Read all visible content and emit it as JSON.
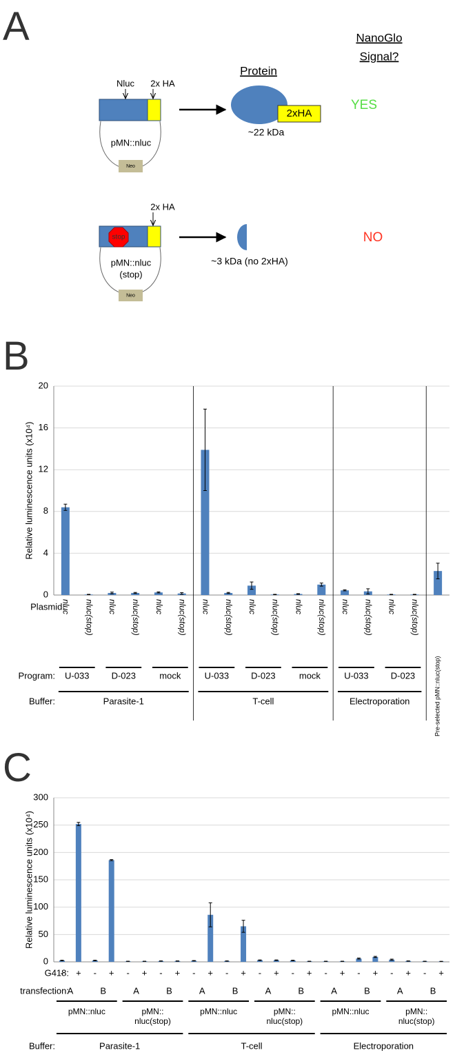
{
  "diagram": {
    "panel": "A",
    "protein_heading": "Protein",
    "signal_heading": [
      "NanoGlo",
      "Signal?"
    ],
    "rows": [
      {
        "insert_label": "Nluc",
        "tag_label": "2x HA",
        "plasmid": [
          "pMN::nluc"
        ],
        "marker": "Neo",
        "protein_tag": "2xHA",
        "protein_size": "~22 kDa",
        "signal": "YES"
      },
      {
        "tag_label": "2x HA",
        "stop": "stop",
        "plasmid": [
          "pMN::nluc",
          "(stop)"
        ],
        "marker": "Neo",
        "protein_size": "~3 kDa (no 2xHA)",
        "signal": "NO"
      }
    ]
  },
  "chart_data": [
    {
      "type": "bar",
      "panel": "B",
      "y_label": "Relative luminescence units (x10⁴)",
      "row_labels": {
        "plasmid": "Plasmid:",
        "program": "Program:",
        "buffer": "Buffer:"
      },
      "categories": [
        "nluc",
        "nluc(stop)",
        "nluc",
        "nluc(stop)",
        "nluc",
        "nluc(stop)",
        "nluc",
        "nluc(stop)",
        "nluc",
        "nluc(stop)",
        "nluc",
        "nluc(stop)",
        "nluc",
        "nluc(stop)",
        "nluc",
        "nluc(stop)",
        "Pre-selected pMN::nluc(stop)"
      ],
      "programs": [
        "U-033",
        "D-023",
        "mock",
        "U-033",
        "D-023",
        "mock",
        "U-033",
        "D-023"
      ],
      "buffers": [
        "Parasite-1",
        "T-cell",
        "Electroporation"
      ],
      "values": [
        8.4,
        0.05,
        0.2,
        0.2,
        0.25,
        0.15,
        13.9,
        0.2,
        0.9,
        0.05,
        0.1,
        1.0,
        0.45,
        0.35,
        0.05,
        0.05,
        2.3
      ],
      "errors": [
        0.3,
        0.02,
        0.08,
        0.05,
        0.05,
        0.08,
        3.9,
        0.05,
        0.35,
        0.02,
        0.03,
        0.15,
        0.05,
        0.25,
        0.02,
        0.02,
        0.75
      ],
      "color": "#4f81bd",
      "ylim": [
        0,
        20
      ],
      "yticks": [
        0,
        4,
        8,
        12,
        16,
        20
      ],
      "grid": true
    },
    {
      "type": "bar",
      "panel": "C",
      "y_label": "Relative luminescence units (x10⁴)",
      "row_labels": {
        "g418": "G418:",
        "transfection": "transfection:",
        "buffer": "Buffer:"
      },
      "categories": [
        "-",
        "+",
        "-",
        "+",
        "-",
        "+",
        "-",
        "+",
        "-",
        "+",
        "-",
        "+",
        "-",
        "+",
        "-",
        "+",
        "-",
        "+",
        "-",
        "+",
        "-",
        "+",
        "-",
        "+"
      ],
      "transfections": [
        "A",
        "B",
        "A",
        "B",
        "A",
        "B",
        "A",
        "B",
        "A",
        "B",
        "A",
        "B"
      ],
      "plasmids": [
        [
          "pMN::nluc"
        ],
        [
          "pMN::",
          "nluc(stop)"
        ],
        [
          "pMN::nluc"
        ],
        [
          "pMN::",
          "nluc(stop)"
        ],
        [
          "pMN::nluc"
        ],
        [
          "pMN::",
          "nluc(stop)"
        ]
      ],
      "buffers": [
        "Parasite-1",
        "T-cell",
        "Electroporation"
      ],
      "values": [
        2.5,
        252,
        2.5,
        186,
        1,
        1,
        1.5,
        1.5,
        2,
        86,
        1.5,
        65,
        3,
        3,
        2.5,
        1,
        1,
        1,
        6,
        9,
        4,
        1.5,
        1,
        0.8
      ],
      "errors": [
        0.5,
        3,
        0.5,
        1,
        0.2,
        0.2,
        0.3,
        0.3,
        0.4,
        22,
        0.3,
        11,
        0.5,
        0.5,
        0.5,
        0.2,
        0.2,
        0.2,
        1,
        1,
        1,
        0.3,
        0.2,
        0.2
      ],
      "color": "#4f81bd",
      "ylim": [
        0,
        300
      ],
      "yticks": [
        0,
        50,
        100,
        150,
        200,
        250,
        300
      ],
      "grid": true
    }
  ]
}
